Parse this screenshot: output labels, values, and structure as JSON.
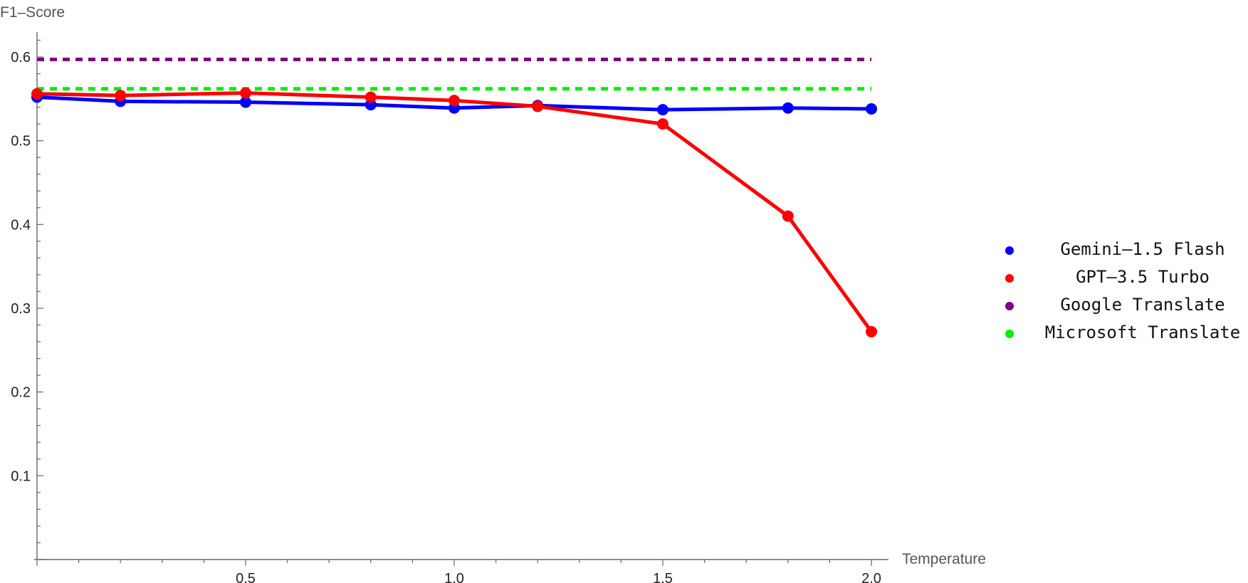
{
  "chart_data": {
    "type": "line",
    "title": "",
    "xlabel": "Temperature",
    "ylabel": "F1–Score",
    "xlim": [
      0,
      2.0
    ],
    "ylim": [
      0,
      0.6
    ],
    "x_ticks": [
      "0.5",
      "1.0",
      "1.5",
      "2.0"
    ],
    "y_ticks": [
      "0.1",
      "0.2",
      "0.3",
      "0.4",
      "0.5",
      "0.6"
    ],
    "grid": false,
    "legend_position": "right",
    "series": [
      {
        "name": "Gemini–1.5 Flash",
        "color": "#0000ff",
        "style": "line-markers",
        "x": [
          0,
          0.2,
          0.5,
          0.8,
          1.0,
          1.2,
          1.5,
          1.8,
          2.0
        ],
        "y": [
          0.552,
          0.547,
          0.546,
          0.543,
          0.539,
          0.542,
          0.537,
          0.539,
          0.538
        ]
      },
      {
        "name": "GPT–3.5 Turbo",
        "color": "#ff0000",
        "style": "line-markers",
        "x": [
          0,
          0.2,
          0.5,
          0.8,
          1.0,
          1.2,
          1.5,
          1.8,
          2.0
        ],
        "y": [
          0.556,
          0.554,
          0.557,
          0.552,
          0.548,
          0.541,
          0.52,
          0.41,
          0.272
        ]
      },
      {
        "name": "Google Translate",
        "color": "#800080",
        "style": "dashed",
        "x": [
          0,
          2.0
        ],
        "y": [
          0.597,
          0.597
        ]
      },
      {
        "name": "Microsoft Translate",
        "color": "#00ee00",
        "style": "dashed",
        "x": [
          0,
          2.0
        ],
        "y": [
          0.562,
          0.562
        ]
      }
    ]
  }
}
